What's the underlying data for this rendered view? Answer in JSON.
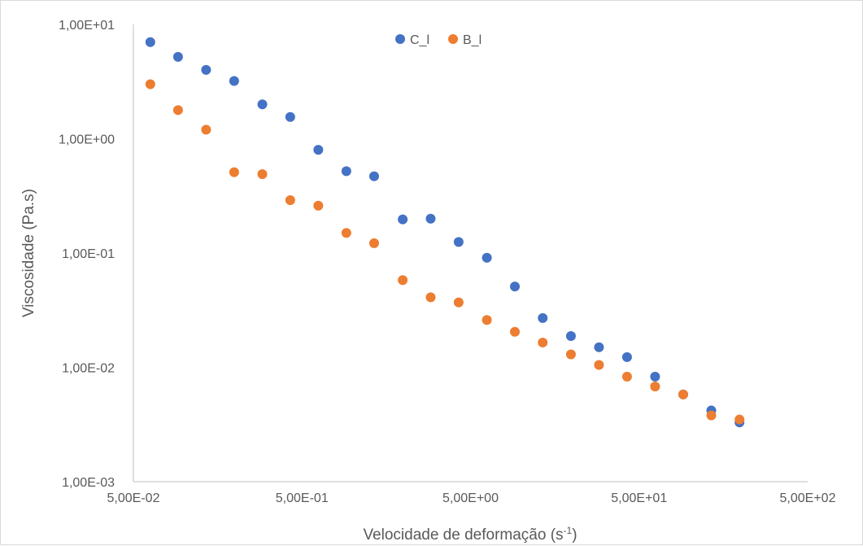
{
  "chart_data": {
    "type": "scatter",
    "title": "",
    "xlabel": "Velocidade de deformação (s",
    "xlabel_superscript": "-1",
    "xlabel_suffix": ")",
    "ylabel": "Viscosidade (Pa.s)",
    "x_scale": "log",
    "y_scale": "log",
    "xlim": [
      0.05,
      500
    ],
    "ylim": [
      0.001,
      10
    ],
    "x_ticks": [
      0.05,
      0.5,
      5,
      50,
      500
    ],
    "x_tick_labels": [
      "5,00E-02",
      "5,00E-01",
      "5,00E+00",
      "5,00E+01",
      "5,00E+02"
    ],
    "y_ticks": [
      10,
      1,
      0.1,
      0.01,
      0.001
    ],
    "y_tick_labels": [
      "1,00E+01",
      "1,00E+00",
      "1,00E-01",
      "1,00E-02",
      "1,00E-03"
    ],
    "grid": false,
    "legend_position": "top-center",
    "series": [
      {
        "name": "C_l",
        "color": "#4472c4",
        "x": [
          0.063,
          0.092,
          0.135,
          0.198,
          0.291,
          0.426,
          0.625,
          0.917,
          1.34,
          1.98,
          2.9,
          4.25,
          6.25,
          9.16,
          13.4,
          19.7,
          28.9,
          42.4,
          62.2,
          91.3,
          134
        ],
        "y": [
          7.0,
          5.2,
          4.0,
          3.2,
          2.0,
          1.55,
          0.8,
          0.52,
          0.47,
          0.197,
          0.2,
          0.125,
          0.091,
          0.051,
          0.027,
          0.0188,
          0.015,
          0.0123,
          0.0083,
          0.0058,
          0.0042
        ]
      },
      {
        "name": "B_l",
        "color": "#ed7d31",
        "x": [
          0.063,
          0.092,
          0.135,
          0.198,
          0.291,
          0.426,
          0.625,
          0.917,
          1.34,
          1.98,
          2.9,
          4.25,
          6.25,
          9.16,
          13.4,
          19.7,
          28.9,
          42.4,
          62.2,
          91.3,
          134
        ],
        "y": [
          3.0,
          1.78,
          1.2,
          0.51,
          0.49,
          0.29,
          0.26,
          0.15,
          0.122,
          0.058,
          0.041,
          0.037,
          0.026,
          0.0205,
          0.0165,
          0.013,
          0.0105,
          0.0083,
          0.0068,
          0.0058,
          0.0038
        ]
      }
    ],
    "extra_points": [
      {
        "series": "C_l",
        "x": 197,
        "y": 0.0033
      },
      {
        "series": "B_l",
        "x": 197,
        "y": 0.0035
      }
    ]
  }
}
